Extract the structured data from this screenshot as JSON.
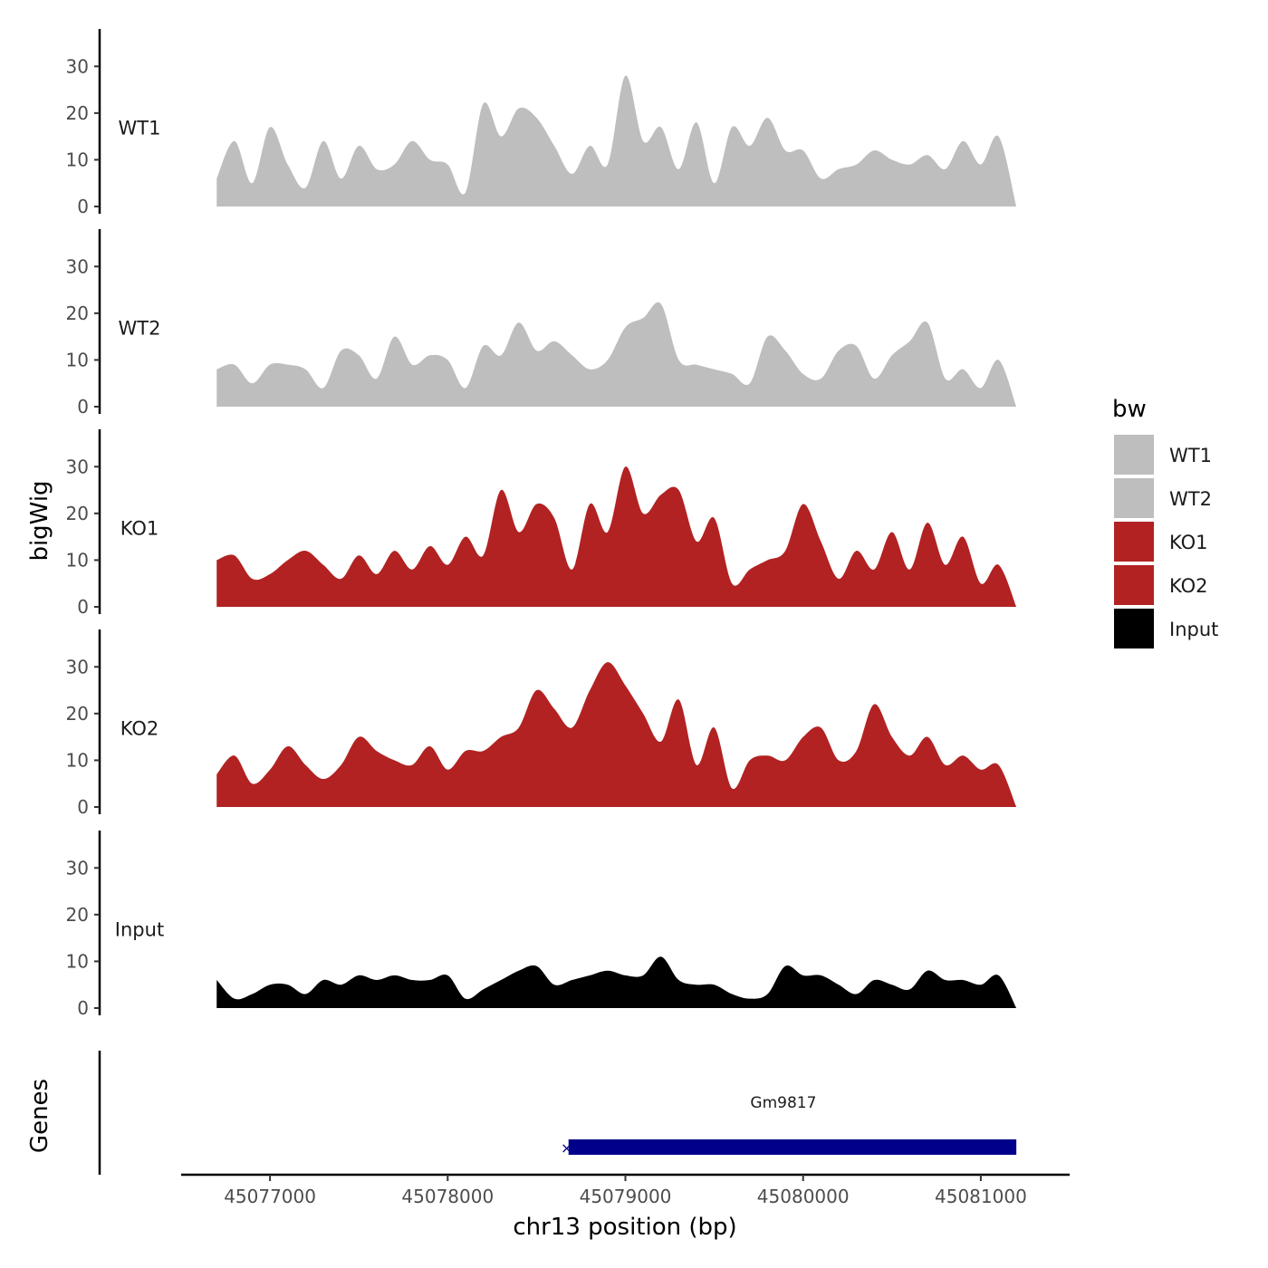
{
  "chart_data": {
    "type": "area",
    "ylabel": "bigWig",
    "xlabel": "chr13 position (bp)",
    "genes_label": "Genes",
    "x_range": [
      45076500,
      45081500
    ],
    "x_ticks": [
      45077000,
      45078000,
      45079000,
      45080000,
      45081000
    ],
    "x_tick_labels": [
      "45077000",
      "45078000",
      "45079000",
      "45080000",
      "45081000"
    ],
    "y_range": [
      0,
      38
    ],
    "y_ticks": [
      0,
      10,
      20,
      30
    ],
    "y_tick_labels": [
      "0",
      "10",
      "20",
      "30"
    ],
    "legend": {
      "title": "bw",
      "placement": "right",
      "entries": [
        {
          "label": "WT1",
          "color": "#bebebe"
        },
        {
          "label": "WT2",
          "color": "#bebebe"
        },
        {
          "label": "KO1",
          "color": "#b22222"
        },
        {
          "label": "KO2",
          "color": "#b22222"
        },
        {
          "label": "Input",
          "color": "#000000"
        }
      ]
    },
    "series": [
      {
        "name": "WT1",
        "color": "#bebebe",
        "x": [
          45076700,
          45076800,
          45076900,
          45077000,
          45077100,
          45077200,
          45077300,
          45077400,
          45077500,
          45077600,
          45077700,
          45077800,
          45077900,
          45078000,
          45078100,
          45078200,
          45078300,
          45078400,
          45078500,
          45078600,
          45078700,
          45078800,
          45078900,
          45079000,
          45079100,
          45079200,
          45079300,
          45079400,
          45079500,
          45079600,
          45079700,
          45079800,
          45079900,
          45080000,
          45080100,
          45080200,
          45080300,
          45080400,
          45080500,
          45080600,
          45080700,
          45080800,
          45080900,
          45081000,
          45081100,
          45081200
        ],
        "y": [
          6,
          14,
          5,
          17,
          9,
          4,
          14,
          6,
          13,
          8,
          9,
          14,
          10,
          9,
          3,
          22,
          15,
          21,
          19,
          13,
          7,
          13,
          9,
          28,
          14,
          17,
          8,
          18,
          5,
          17,
          13,
          19,
          12,
          12,
          6,
          8,
          9,
          12,
          10,
          9,
          11,
          8,
          14,
          9,
          15,
          0
        ]
      },
      {
        "name": "WT2",
        "color": "#bebebe",
        "x": [
          45076700,
          45076800,
          45076900,
          45077000,
          45077100,
          45077200,
          45077300,
          45077400,
          45077500,
          45077600,
          45077700,
          45077800,
          45077900,
          45078000,
          45078100,
          45078200,
          45078300,
          45078400,
          45078500,
          45078600,
          45078700,
          45078800,
          45078900,
          45079000,
          45079100,
          45079200,
          45079300,
          45079400,
          45079500,
          45079600,
          45079700,
          45079800,
          45079900,
          45080000,
          45080100,
          45080200,
          45080300,
          45080400,
          45080500,
          45080600,
          45080700,
          45080800,
          45080900,
          45081000,
          45081100,
          45081200
        ],
        "y": [
          8,
          9,
          5,
          9,
          9,
          8,
          4,
          12,
          11,
          6,
          15,
          9,
          11,
          10,
          4,
          13,
          11,
          18,
          12,
          14,
          11,
          8,
          10,
          17,
          19,
          22,
          10,
          9,
          8,
          7,
          5,
          15,
          12,
          7,
          6,
          12,
          13,
          6,
          11,
          14,
          18,
          6,
          8,
          4,
          10,
          0
        ]
      },
      {
        "name": "KO1",
        "color": "#b22222",
        "x": [
          45076700,
          45076800,
          45076900,
          45077000,
          45077100,
          45077200,
          45077300,
          45077400,
          45077500,
          45077600,
          45077700,
          45077800,
          45077900,
          45078000,
          45078100,
          45078200,
          45078300,
          45078400,
          45078500,
          45078600,
          45078700,
          45078800,
          45078900,
          45079000,
          45079100,
          45079200,
          45079300,
          45079400,
          45079500,
          45079600,
          45079700,
          45079800,
          45079900,
          45080000,
          45080100,
          45080200,
          45080300,
          45080400,
          45080500,
          45080600,
          45080700,
          45080800,
          45080900,
          45081000,
          45081100,
          45081200
        ],
        "y": [
          10,
          11,
          6,
          7,
          10,
          12,
          9,
          6,
          11,
          7,
          12,
          8,
          13,
          9,
          15,
          11,
          25,
          16,
          22,
          19,
          8,
          22,
          16,
          30,
          20,
          24,
          25,
          14,
          19,
          5,
          8,
          10,
          12,
          22,
          14,
          6,
          12,
          8,
          16,
          8,
          18,
          9,
          15,
          5,
          9,
          0
        ]
      },
      {
        "name": "KO2",
        "color": "#b22222",
        "x": [
          45076700,
          45076800,
          45076900,
          45077000,
          45077100,
          45077200,
          45077300,
          45077400,
          45077500,
          45077600,
          45077700,
          45077800,
          45077900,
          45078000,
          45078100,
          45078200,
          45078300,
          45078400,
          45078500,
          45078600,
          45078700,
          45078800,
          45078900,
          45079000,
          45079100,
          45079200,
          45079300,
          45079400,
          45079500,
          45079600,
          45079700,
          45079800,
          45079900,
          45080000,
          45080100,
          45080200,
          45080300,
          45080400,
          45080500,
          45080600,
          45080700,
          45080800,
          45080900,
          45081000,
          45081100,
          45081200
        ],
        "y": [
          7,
          11,
          5,
          8,
          13,
          9,
          6,
          9,
          15,
          12,
          10,
          9,
          13,
          8,
          12,
          12,
          15,
          17,
          25,
          21,
          17,
          25,
          31,
          26,
          20,
          14,
          23,
          9,
          17,
          4,
          10,
          11,
          10,
          15,
          17,
          10,
          12,
          22,
          15,
          11,
          15,
          9,
          11,
          8,
          9,
          0
        ]
      },
      {
        "name": "Input",
        "color": "#000000",
        "x": [
          45076700,
          45076800,
          45076900,
          45077000,
          45077100,
          45077200,
          45077300,
          45077400,
          45077500,
          45077600,
          45077700,
          45077800,
          45077900,
          45078000,
          45078100,
          45078200,
          45078300,
          45078400,
          45078500,
          45078600,
          45078700,
          45078800,
          45078900,
          45079000,
          45079100,
          45079200,
          45079300,
          45079400,
          45079500,
          45079600,
          45079700,
          45079800,
          45079900,
          45080000,
          45080100,
          45080200,
          45080300,
          45080400,
          45080500,
          45080600,
          45080700,
          45080800,
          45080900,
          45081000,
          45081100,
          45081200
        ],
        "y": [
          6,
          2,
          3,
          5,
          5,
          3,
          6,
          5,
          7,
          6,
          7,
          6,
          6,
          7,
          2,
          4,
          6,
          8,
          9,
          5,
          6,
          7,
          8,
          7,
          7,
          11,
          6,
          5,
          5,
          3,
          2,
          3,
          9,
          7,
          7,
          5,
          3,
          6,
          5,
          4,
          8,
          6,
          6,
          5,
          7,
          0
        ]
      }
    ],
    "genes": [
      {
        "name": "Gm9817",
        "start": 45078680,
        "end": 45081200,
        "color": "#00008b",
        "strand": "+"
      }
    ]
  }
}
